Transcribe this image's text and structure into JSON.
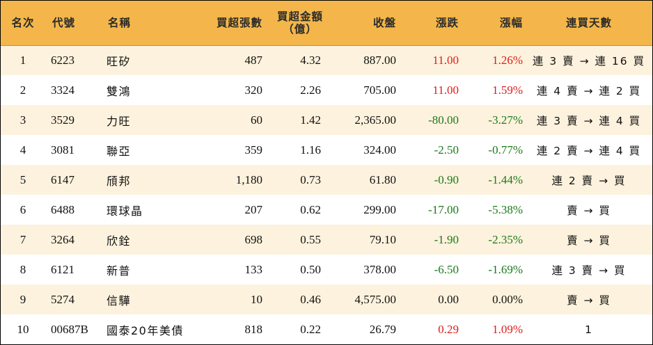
{
  "headers": {
    "rank": "名次",
    "code": "代號",
    "name": "名稱",
    "net_buy_lots": "買超張數",
    "net_buy_amount_line1": "買超金額",
    "net_buy_amount_line2": "（億）",
    "close": "收盤",
    "change": "漲跌",
    "change_pct": "漲幅",
    "consecutive_days": "連買天數"
  },
  "rows": [
    {
      "rank": "1",
      "code": "6223",
      "name": "旺矽",
      "lots": "487",
      "amount": "4.32",
      "close": "887.00",
      "change": "11.00",
      "pct": "1.26%",
      "days": "連 3 賣 → 連 16 買",
      "dir": "up"
    },
    {
      "rank": "2",
      "code": "3324",
      "name": "雙鴻",
      "lots": "320",
      "amount": "2.26",
      "close": "705.00",
      "change": "11.00",
      "pct": "1.59%",
      "days": "連 4 賣 → 連 2 買",
      "dir": "up"
    },
    {
      "rank": "3",
      "code": "3529",
      "name": "力旺",
      "lots": "60",
      "amount": "1.42",
      "close": "2,365.00",
      "change": "-80.00",
      "pct": "-3.27%",
      "days": "連 3 賣 → 連 4 買",
      "dir": "down"
    },
    {
      "rank": "4",
      "code": "3081",
      "name": "聯亞",
      "lots": "359",
      "amount": "1.16",
      "close": "324.00",
      "change": "-2.50",
      "pct": "-0.77%",
      "days": "連 2 賣 → 連 4 買",
      "dir": "down"
    },
    {
      "rank": "5",
      "code": "6147",
      "name": "頎邦",
      "lots": "1,180",
      "amount": "0.73",
      "close": "61.80",
      "change": "-0.90",
      "pct": "-1.44%",
      "days": "連 2 賣 → 買",
      "dir": "down"
    },
    {
      "rank": "6",
      "code": "6488",
      "name": "環球晶",
      "lots": "207",
      "amount": "0.62",
      "close": "299.00",
      "change": "-17.00",
      "pct": "-5.38%",
      "days": "賣 → 買",
      "dir": "down"
    },
    {
      "rank": "7",
      "code": "3264",
      "name": "欣銓",
      "lots": "698",
      "amount": "0.55",
      "close": "79.10",
      "change": "-1.90",
      "pct": "-2.35%",
      "days": "賣 → 買",
      "dir": "down"
    },
    {
      "rank": "8",
      "code": "6121",
      "name": "新普",
      "lots": "133",
      "amount": "0.50",
      "close": "378.00",
      "change": "-6.50",
      "pct": "-1.69%",
      "days": "連 3 賣 → 買",
      "dir": "down"
    },
    {
      "rank": "9",
      "code": "5274",
      "name": "信驊",
      "lots": "10",
      "amount": "0.46",
      "close": "4,575.00",
      "change": "0.00",
      "pct": "0.00%",
      "days": "賣 → 買",
      "dir": "flat"
    },
    {
      "rank": "10",
      "code": "00687B",
      "name": "國泰20年美債",
      "lots": "818",
      "amount": "0.22",
      "close": "26.79",
      "change": "0.29",
      "pct": "1.09%",
      "days": "1",
      "dir": "up"
    }
  ],
  "colors": {
    "header_bg": "#f4b64a",
    "odd_row_bg": "#fdf2dd",
    "up": "#e01b1b",
    "down": "#1a7a1a"
  }
}
